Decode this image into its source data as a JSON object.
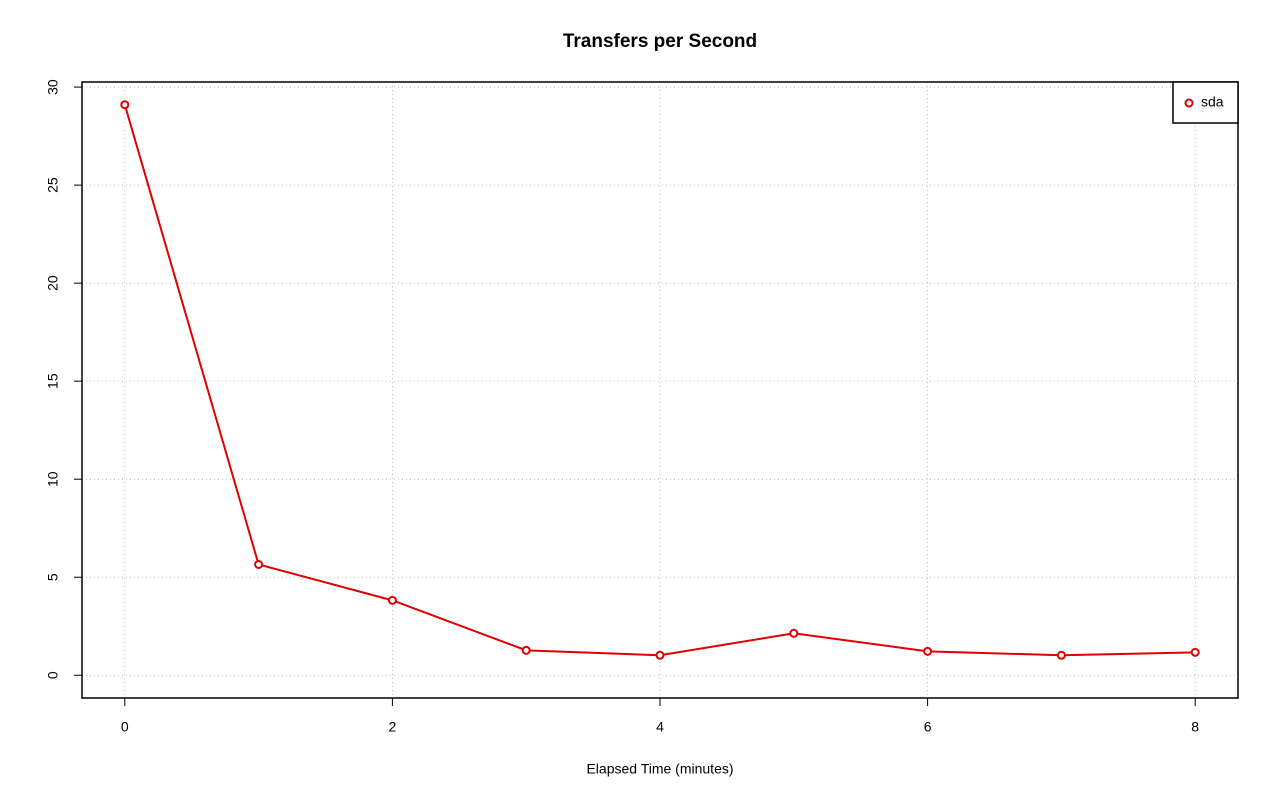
{
  "chart_data": {
    "type": "line",
    "title": "Transfers per Second",
    "x_label": "Elapsed Time (minutes)",
    "x": [
      0,
      1,
      2,
      3,
      4,
      5,
      6,
      7,
      8
    ],
    "series": [
      {
        "name": "sda",
        "color": "#e00000",
        "values": [
          29.1,
          5.65,
          3.82,
          1.27,
          1.02,
          2.14,
          1.22,
          1.02,
          1.17
        ]
      }
    ],
    "xlim": [
      -0.32,
      8.32
    ],
    "xticks": [
      0,
      2,
      4,
      6,
      8
    ],
    "ylim": [
      -1.16,
      30.26
    ],
    "yticks": [
      0,
      5,
      10,
      15,
      20,
      25,
      30
    ],
    "grid": true,
    "legend": "topright",
    "markers": true
  }
}
